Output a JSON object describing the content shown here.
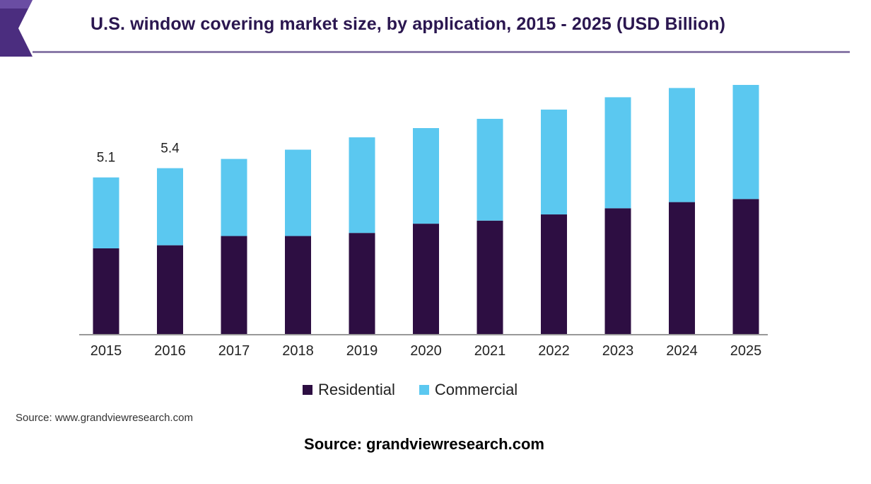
{
  "header": {
    "title": "U.S. window covering market size, by application, 2015 - 2025 (USD Billion)"
  },
  "colors": {
    "residential": "#2d0e42",
    "commercial": "#5bc8f0",
    "title": "#2b1750",
    "logo": "#4b2d7f"
  },
  "chart_data": {
    "type": "bar",
    "stacked": true,
    "categories": [
      "2015",
      "2016",
      "2017",
      "2018",
      "2019",
      "2020",
      "2021",
      "2022",
      "2023",
      "2024",
      "2025"
    ],
    "series": [
      {
        "name": "Residential",
        "values": [
          2.8,
          2.9,
          3.2,
          3.2,
          3.3,
          3.6,
          3.7,
          3.9,
          4.1,
          4.3,
          4.4
        ]
      },
      {
        "name": "Commercial",
        "values": [
          2.3,
          2.5,
          2.5,
          2.8,
          3.1,
          3.1,
          3.3,
          3.4,
          3.6,
          3.7,
          3.7
        ]
      }
    ],
    "data_labels": [
      "5.1",
      "5.4",
      "",
      "",
      "",
      "",
      "",
      "",
      "",
      "",
      ""
    ],
    "ylim": [
      0,
      8.1
    ],
    "grid": false,
    "legend_position": "bottom-center"
  },
  "legend": {
    "items": [
      {
        "label": "Residential",
        "color": "#2d0e42"
      },
      {
        "label": "Commercial",
        "color": "#5bc8f0"
      }
    ]
  },
  "footer": {
    "source_small": "Source: www.grandviewresearch.com",
    "source_big": "Source: grandviewresearch.com"
  }
}
